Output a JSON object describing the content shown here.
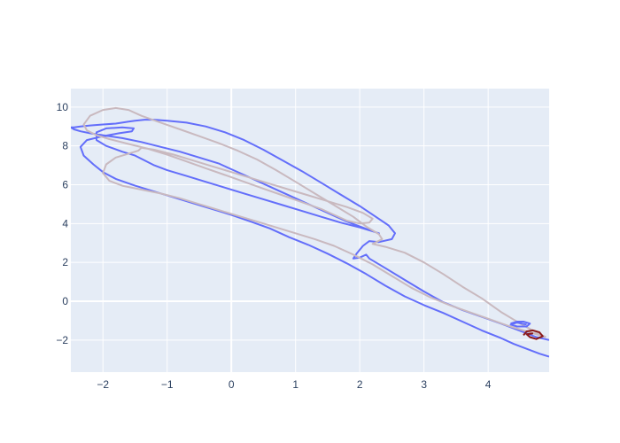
{
  "chart_data": {
    "type": "line",
    "title": "",
    "xlabel": "",
    "ylabel": "",
    "xlim": [
      -2.5,
      4.95
    ],
    "ylim": [
      -3.65,
      10.95
    ],
    "grid": true,
    "legend": "none",
    "x_ticks": [
      -2,
      -1,
      0,
      1,
      2,
      3,
      4
    ],
    "y_ticks": [
      -2,
      0,
      2,
      4,
      6,
      8,
      10
    ],
    "colors": {
      "plot_bg": "#e5ecf6",
      "grid": "#ffffff",
      "tick_text": "#2a3f5f",
      "outer_contour": "#636efa",
      "inner_contour": "#c9b9bf",
      "core": "#8b1a1a"
    },
    "series": [
      {
        "color": "#636efa",
        "x": [
          4.95,
          4.8,
          4.6,
          4.4,
          4.2,
          3.9,
          3.6,
          3.3,
          3.0,
          2.7,
          2.4,
          2.1,
          1.8,
          1.5,
          1.2,
          0.9,
          0.6,
          0.3,
          0.0,
          -0.3,
          -0.6,
          -0.9,
          -1.2,
          -1.5,
          -1.8,
          -2.0,
          -2.15,
          -2.3,
          -2.35,
          -2.25,
          -2.0,
          -1.75,
          -1.55,
          -1.52,
          -1.7,
          -1.95,
          -2.1,
          -2.1,
          -1.95,
          -1.7,
          -1.5,
          -1.35,
          -1.2,
          -1.0,
          -0.7,
          -0.4,
          -0.1,
          0.2,
          0.5,
          0.8,
          1.1,
          1.4,
          1.7,
          2.0,
          2.2,
          2.3,
          2.2,
          2.0,
          1.8,
          1.6,
          1.4,
          1.2,
          1.0,
          0.8,
          0.6,
          0.4,
          0.2,
          0.0,
          -0.2,
          -0.5,
          -0.8,
          -1.1,
          -1.4,
          -1.7,
          -2.0,
          -2.2,
          -2.35,
          -2.45,
          -2.5,
          -2.45,
          -2.35,
          -2.2,
          -2.0,
          -1.8,
          -1.7,
          -1.6,
          -1.5,
          -1.35,
          -1.2,
          -1.0,
          -0.7,
          -0.4,
          -0.1,
          0.2,
          0.5,
          0.8,
          1.1,
          1.4,
          1.7,
          2.0,
          2.25,
          2.45,
          2.55,
          2.5,
          2.3,
          2.15,
          2.05,
          1.95,
          1.9,
          2.0,
          2.1,
          2.15,
          2.4,
          2.7,
          3.0,
          3.3,
          3.6,
          3.9,
          4.2,
          4.4,
          4.6,
          4.75,
          4.95
        ],
        "y": [
          -2.85,
          -2.7,
          -2.45,
          -2.2,
          -1.9,
          -1.5,
          -1.05,
          -0.6,
          -0.2,
          0.25,
          0.8,
          1.4,
          1.95,
          2.45,
          2.9,
          3.3,
          3.75,
          4.1,
          4.45,
          4.75,
          5.05,
          5.35,
          5.65,
          5.95,
          6.3,
          6.65,
          7.05,
          7.5,
          7.95,
          8.3,
          8.5,
          8.65,
          8.75,
          8.9,
          8.95,
          8.9,
          8.7,
          8.3,
          8.0,
          7.7,
          7.5,
          7.25,
          7.0,
          6.75,
          6.45,
          6.15,
          5.85,
          5.55,
          5.25,
          4.95,
          4.65,
          4.35,
          4.05,
          3.8,
          3.6,
          3.5,
          3.6,
          3.85,
          4.1,
          4.4,
          4.7,
          5.0,
          5.3,
          5.6,
          5.9,
          6.2,
          6.5,
          6.8,
          7.1,
          7.4,
          7.7,
          7.95,
          8.2,
          8.4,
          8.55,
          8.65,
          8.75,
          8.85,
          8.95,
          8.95,
          9.0,
          9.05,
          9.1,
          9.15,
          9.2,
          9.25,
          9.3,
          9.35,
          9.35,
          9.3,
          9.2,
          9.0,
          8.7,
          8.3,
          7.8,
          7.25,
          6.7,
          6.1,
          5.5,
          4.9,
          4.35,
          3.9,
          3.5,
          3.2,
          3.05,
          3.1,
          2.85,
          2.45,
          2.2,
          2.25,
          2.4,
          2.2,
          1.7,
          1.1,
          0.5,
          -0.05,
          -0.45,
          -0.8,
          -1.15,
          -1.4,
          -1.65,
          -1.85,
          -2.0
        ]
      },
      {
        "color": "#c9b9bf",
        "x": [
          4.9,
          4.6,
          4.3,
          4.0,
          3.7,
          3.4,
          3.1,
          2.8,
          2.5,
          2.2,
          1.9,
          1.6,
          1.3,
          1.0,
          0.7,
          0.4,
          0.1,
          -0.2,
          -0.5,
          -0.8,
          -1.1,
          -1.4,
          -1.7,
          -1.9,
          -2.0,
          -1.95,
          -1.8,
          -1.6,
          -1.45,
          -1.4,
          -1.2,
          -0.9,
          -0.6,
          -0.3,
          0.0,
          0.3,
          0.6,
          0.9,
          1.2,
          1.5,
          1.8,
          2.05,
          2.2,
          2.15,
          2.0,
          1.8,
          1.6,
          1.4,
          1.1,
          0.8,
          0.5,
          0.2,
          -0.1,
          -0.4,
          -0.7,
          -1.0,
          -1.3,
          -1.6,
          -1.9,
          -2.1,
          -2.25,
          -2.3,
          -2.2,
          -2.0,
          -1.8,
          -1.6,
          -1.4,
          -1.1,
          -0.8,
          -0.5,
          -0.2,
          0.1,
          0.4,
          0.7,
          1.0,
          1.3,
          1.6,
          1.9,
          2.1,
          2.3,
          2.35,
          2.2,
          2.4,
          2.7,
          3.0,
          3.3,
          3.6,
          3.9,
          4.2,
          4.5,
          4.75,
          4.9
        ],
        "y": [
          -1.85,
          -1.55,
          -1.25,
          -0.9,
          -0.55,
          -0.2,
          0.2,
          0.7,
          1.3,
          1.9,
          2.4,
          2.85,
          3.2,
          3.5,
          3.8,
          4.1,
          4.4,
          4.7,
          5.0,
          5.3,
          5.55,
          5.75,
          5.95,
          6.2,
          6.6,
          7.05,
          7.4,
          7.6,
          7.75,
          7.9,
          7.8,
          7.55,
          7.25,
          6.95,
          6.65,
          6.35,
          6.05,
          5.75,
          5.45,
          5.15,
          4.85,
          4.55,
          4.25,
          4.05,
          4.0,
          4.15,
          4.45,
          4.75,
          5.1,
          5.45,
          5.8,
          6.15,
          6.5,
          6.85,
          7.2,
          7.55,
          7.85,
          8.1,
          8.35,
          8.55,
          8.8,
          9.1,
          9.55,
          9.85,
          9.95,
          9.85,
          9.55,
          9.2,
          8.85,
          8.5,
          8.15,
          7.75,
          7.3,
          6.75,
          6.15,
          5.55,
          4.95,
          4.35,
          3.85,
          3.45,
          3.2,
          2.95,
          2.8,
          2.5,
          2.0,
          1.4,
          0.75,
          0.15,
          -0.55,
          -1.15,
          -1.6,
          -1.85
        ]
      },
      {
        "color": "#8b1a1a",
        "x": [
          4.55,
          4.6,
          4.7,
          4.8,
          4.85,
          4.75,
          4.65,
          4.6,
          4.7
        ],
        "y": [
          -1.75,
          -1.55,
          -1.5,
          -1.6,
          -1.8,
          -1.95,
          -1.85,
          -1.7,
          -1.65
        ]
      },
      {
        "color": "#636efa",
        "x": [
          4.35,
          4.45,
          4.55,
          4.65,
          4.6,
          4.45,
          4.35,
          4.45,
          4.6
        ],
        "y": [
          -1.15,
          -1.05,
          -1.05,
          -1.15,
          -1.3,
          -1.3,
          -1.2,
          -1.1,
          -1.2
        ]
      }
    ]
  }
}
